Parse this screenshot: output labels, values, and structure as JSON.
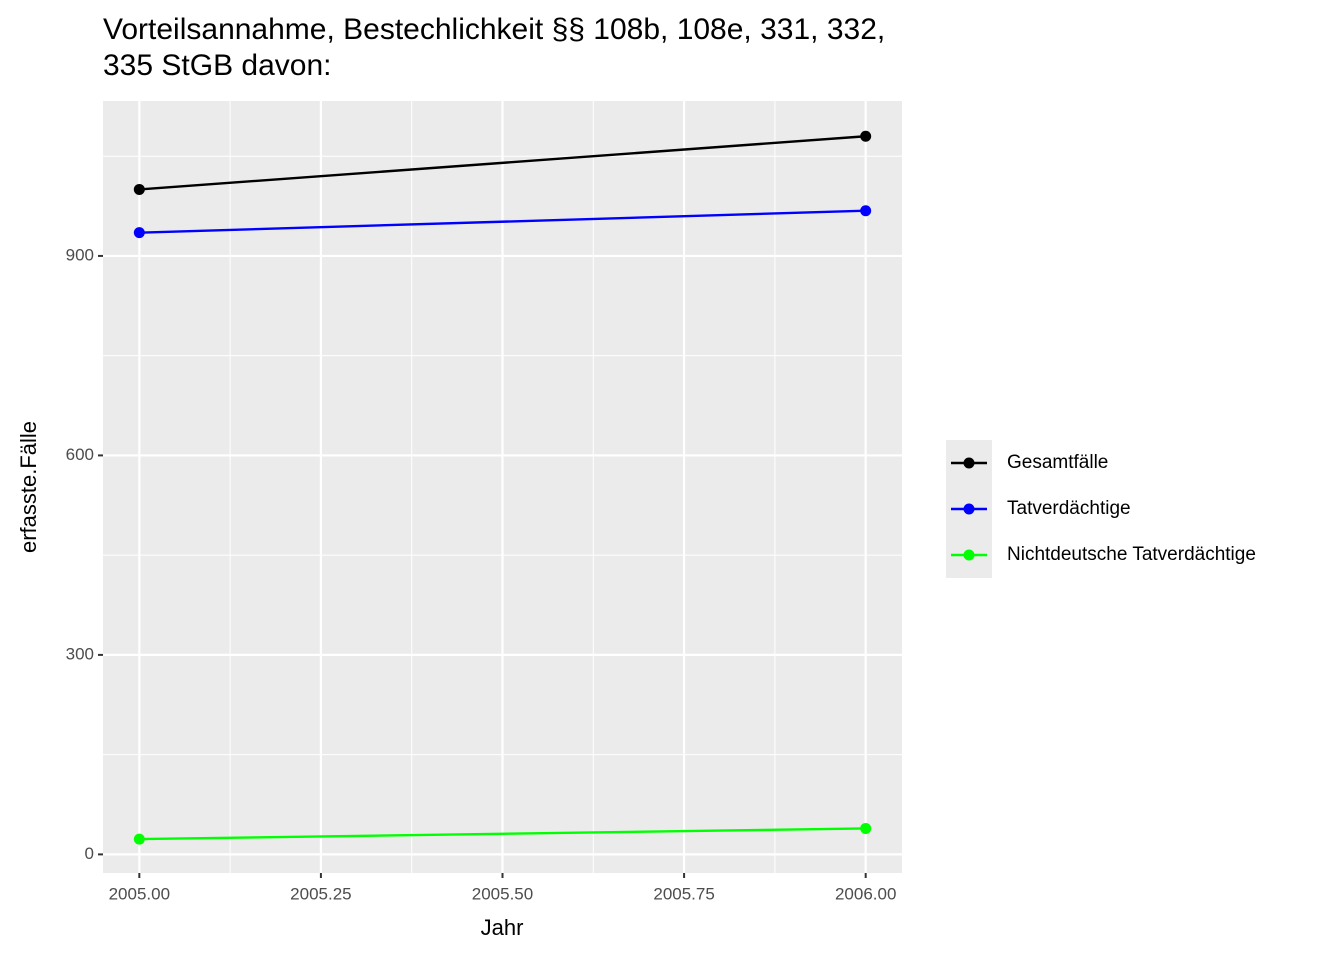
{
  "chart_data": {
    "type": "line",
    "title": [
      "Vorteilsannahme, Bestechlichkeit §§ 108b, 108e, 331, 332,",
      "335 StGB davon:"
    ],
    "x_label": "Jahr",
    "y_label": "erfasste.Fälle",
    "x": [
      2005,
      2006
    ],
    "series": [
      {
        "name": "Gesamtfälle",
        "color": "#000000",
        "values": [
          1000,
          1080
        ]
      },
      {
        "name": "Tatverdächtige",
        "color": "#0000ff",
        "values": [
          935,
          968
        ]
      },
      {
        "name": "Nichtdeutsche Tatverdächtige",
        "color": "#00ff00",
        "values": [
          23,
          39
        ]
      }
    ],
    "xlim": [
      2004.95,
      2006.05
    ],
    "xticks": [
      {
        "value": 2005,
        "label": "2005.00"
      },
      {
        "value": 2005.25,
        "label": "2005.25"
      },
      {
        "value": 2005.5,
        "label": "2005.50"
      },
      {
        "value": 2005.75,
        "label": "2005.75"
      },
      {
        "value": 2006,
        "label": "2006.00"
      }
    ],
    "x_minor_ticks": [
      2005.125,
      2005.375,
      2005.625,
      2005.875
    ],
    "ylim": [
      -28,
      1133
    ],
    "yticks": [
      0,
      300,
      600,
      900
    ],
    "y_minor_ticks": [
      150,
      450,
      750,
      1050
    ],
    "grid": true,
    "legend": "right"
  }
}
